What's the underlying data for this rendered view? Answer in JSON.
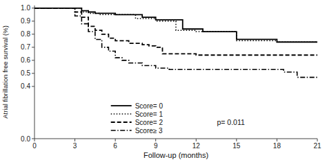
{
  "chart_data": {
    "type": "step",
    "title": "",
    "xlabel": "Follow-up (months)",
    "ylabel": "Atrial fibrillation free survival (%)",
    "xlim": [
      0,
      21
    ],
    "ylim": [
      0.0,
      1.02
    ],
    "xticks": [
      0,
      3,
      6,
      9,
      12,
      15,
      18,
      21
    ],
    "yticks": [
      {
        "value": 0.0,
        "label": "0.0"
      },
      0.4,
      0.5,
      0.6,
      0.7,
      0.8,
      0.9,
      {
        "value": 1.0,
        "label": "1.0"
      }
    ],
    "grid": false,
    "legend": "lower center",
    "annotation": "p= 0.011",
    "series": [
      {
        "name": "Score= 0",
        "color": "black",
        "line_style": "solid",
        "x": [
          0,
          3.2,
          3.5,
          4.0,
          4.5,
          5.0,
          5.5,
          6.0,
          7.0,
          8.0,
          9.0,
          10.0,
          11.0,
          12.5,
          15.0,
          18.0,
          21.0
        ],
        "values": [
          1.0,
          1.0,
          0.98,
          0.97,
          0.96,
          0.96,
          0.96,
          0.95,
          0.95,
          0.93,
          0.91,
          0.91,
          0.84,
          0.82,
          0.76,
          0.74,
          0.74
        ]
      },
      {
        "name": "Score= 1",
        "color": "black",
        "line_style": "dotted",
        "x": [
          0,
          3.0,
          3.5,
          4.0,
          4.8,
          5.5,
          6.0,
          7.5,
          9.0,
          10.5,
          12.0,
          13.5,
          15.0,
          18.0,
          21.0
        ],
        "values": [
          1.0,
          1.0,
          0.97,
          0.96,
          0.95,
          0.95,
          0.95,
          0.92,
          0.9,
          0.83,
          0.82,
          0.82,
          0.75,
          0.74,
          0.74
        ]
      },
      {
        "name": "Score= 2",
        "color": "black",
        "line_style": "dashed",
        "x": [
          0,
          3.0,
          3.5,
          4.0,
          4.5,
          5.0,
          5.5,
          6.0,
          7.0,
          8.0,
          8.5,
          9.0,
          9.5,
          12.0,
          15.0,
          18.0,
          21.0
        ],
        "values": [
          1.0,
          0.97,
          0.93,
          0.86,
          0.83,
          0.8,
          0.77,
          0.75,
          0.73,
          0.72,
          0.71,
          0.7,
          0.65,
          0.64,
          0.64,
          0.64,
          0.64
        ]
      },
      {
        "name": "Score≥ 3",
        "color": "black",
        "line_style": "dashdot",
        "x": [
          0,
          3.0,
          3.5,
          4.0,
          4.5,
          5.0,
          5.5,
          6.0,
          6.5,
          7.0,
          8.0,
          9.0,
          10.0,
          12.0,
          15.0,
          18.0,
          18.5,
          19.5,
          21.0
        ],
        "values": [
          1.0,
          0.94,
          0.88,
          0.82,
          0.76,
          0.7,
          0.67,
          0.62,
          0.6,
          0.58,
          0.56,
          0.54,
          0.53,
          0.53,
          0.53,
          0.53,
          0.51,
          0.47,
          0.47
        ]
      }
    ]
  }
}
